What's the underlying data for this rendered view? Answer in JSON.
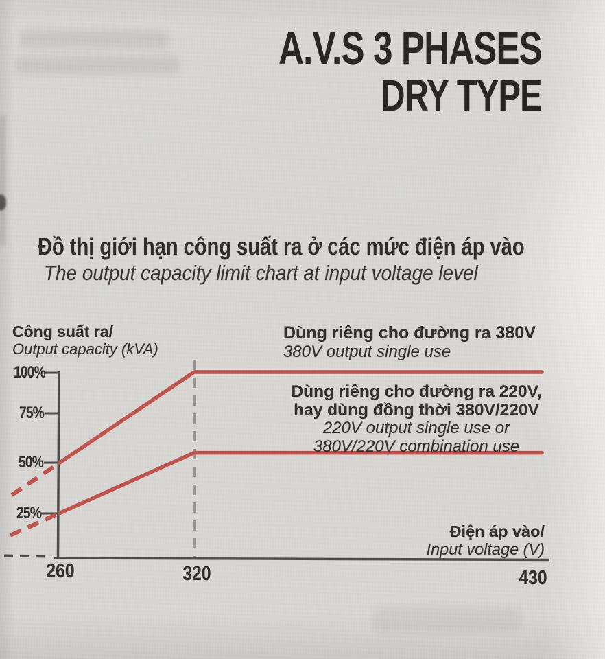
{
  "page": {
    "title_line1": "A.V.S 3 PHASES",
    "title_line2": "DRY TYPE"
  },
  "chart_data": {
    "type": "line",
    "title": "Đồ thị giới hạn công suất ra ở các mức điện áp vào",
    "subtitle": "The output capacity limit chart at input voltage level",
    "x_axis": {
      "label_vi": "Điện áp vào/",
      "label_en": "Input voltage (V)",
      "ticks": [
        "260",
        "320",
        "430"
      ],
      "range": [
        260,
        430
      ]
    },
    "y_axis": {
      "label_vi": "Công suất ra/",
      "label_en": "Output capacity (kVA)",
      "ticks": [
        "100%",
        "75%",
        "50%",
        "25%"
      ],
      "unit": "percent of rated capacity",
      "range": [
        0,
        100
      ]
    },
    "series": [
      {
        "label_vi": "Dùng riêng cho đường ra 380V",
        "label_en": "380V output single use",
        "color": "#c2504a",
        "points": [
          [
            260,
            50
          ],
          [
            320,
            100
          ],
          [
            430,
            100
          ]
        ],
        "dashed_extension_below_260": true
      },
      {
        "label_vi_lines": [
          "Dùng riêng cho đường ra 220V,",
          "hay dùng đồng thời 380V/220V"
        ],
        "label_en_lines": [
          "220V output single use or",
          "380V/220V combination use"
        ],
        "color": "#c2504a",
        "points": [
          [
            260,
            25
          ],
          [
            320,
            55
          ],
          [
            430,
            55
          ]
        ],
        "dashed_extension_below_260": true
      }
    ],
    "grid": false,
    "legend_position": "inside-right",
    "markers": {
      "dashed_vertical_line_at_x": 320
    }
  }
}
